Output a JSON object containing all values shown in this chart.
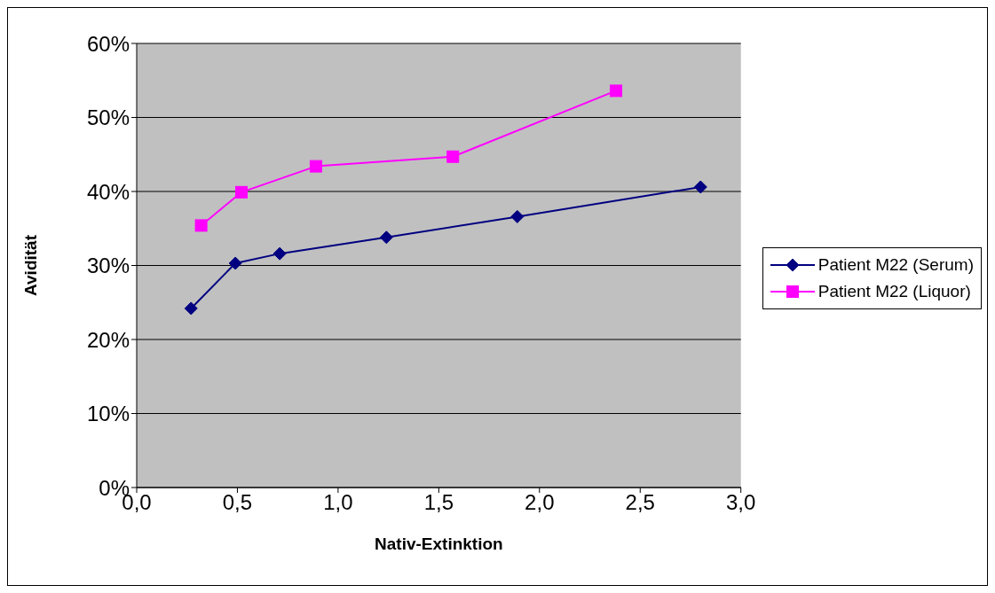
{
  "chart_data": {
    "type": "line",
    "xlabel": "Nativ-Extinktion",
    "ylabel": "Avidität",
    "series": [
      {
        "name": "Patient M22 (Serum)",
        "color": "#000080",
        "marker": "diamond",
        "x": [
          0.27,
          0.49,
          0.71,
          1.24,
          1.89,
          2.8
        ],
        "values": [
          24.2,
          30.3,
          31.6,
          33.8,
          36.6,
          40.6
        ]
      },
      {
        "name": "Patient M22 (Liquor)",
        "color": "#ff00ff",
        "marker": "square",
        "x": [
          0.32,
          0.52,
          0.89,
          1.57,
          2.38
        ],
        "values": [
          35.4,
          39.9,
          43.4,
          44.7,
          53.6
        ]
      }
    ],
    "xlim": [
      0,
      3
    ],
    "xticks": [
      {
        "value": 0,
        "label": "0,0"
      },
      {
        "value": 0.5,
        "label": "0,5"
      },
      {
        "value": 1,
        "label": "1,0"
      },
      {
        "value": 1.5,
        "label": "1,5"
      },
      {
        "value": 2,
        "label": "2,0"
      },
      {
        "value": 2.5,
        "label": "2,5"
      },
      {
        "value": 3,
        "label": "3,0"
      }
    ],
    "ylim": [
      0,
      60
    ],
    "yticks": [
      {
        "value": 0,
        "label": "0%"
      },
      {
        "value": 10,
        "label": "10%"
      },
      {
        "value": 20,
        "label": "20%"
      },
      {
        "value": 30,
        "label": "30%"
      },
      {
        "value": 40,
        "label": "40%"
      },
      {
        "value": 50,
        "label": "50%"
      },
      {
        "value": 60,
        "label": "60%"
      }
    ],
    "grid": "y",
    "legend": "right"
  }
}
